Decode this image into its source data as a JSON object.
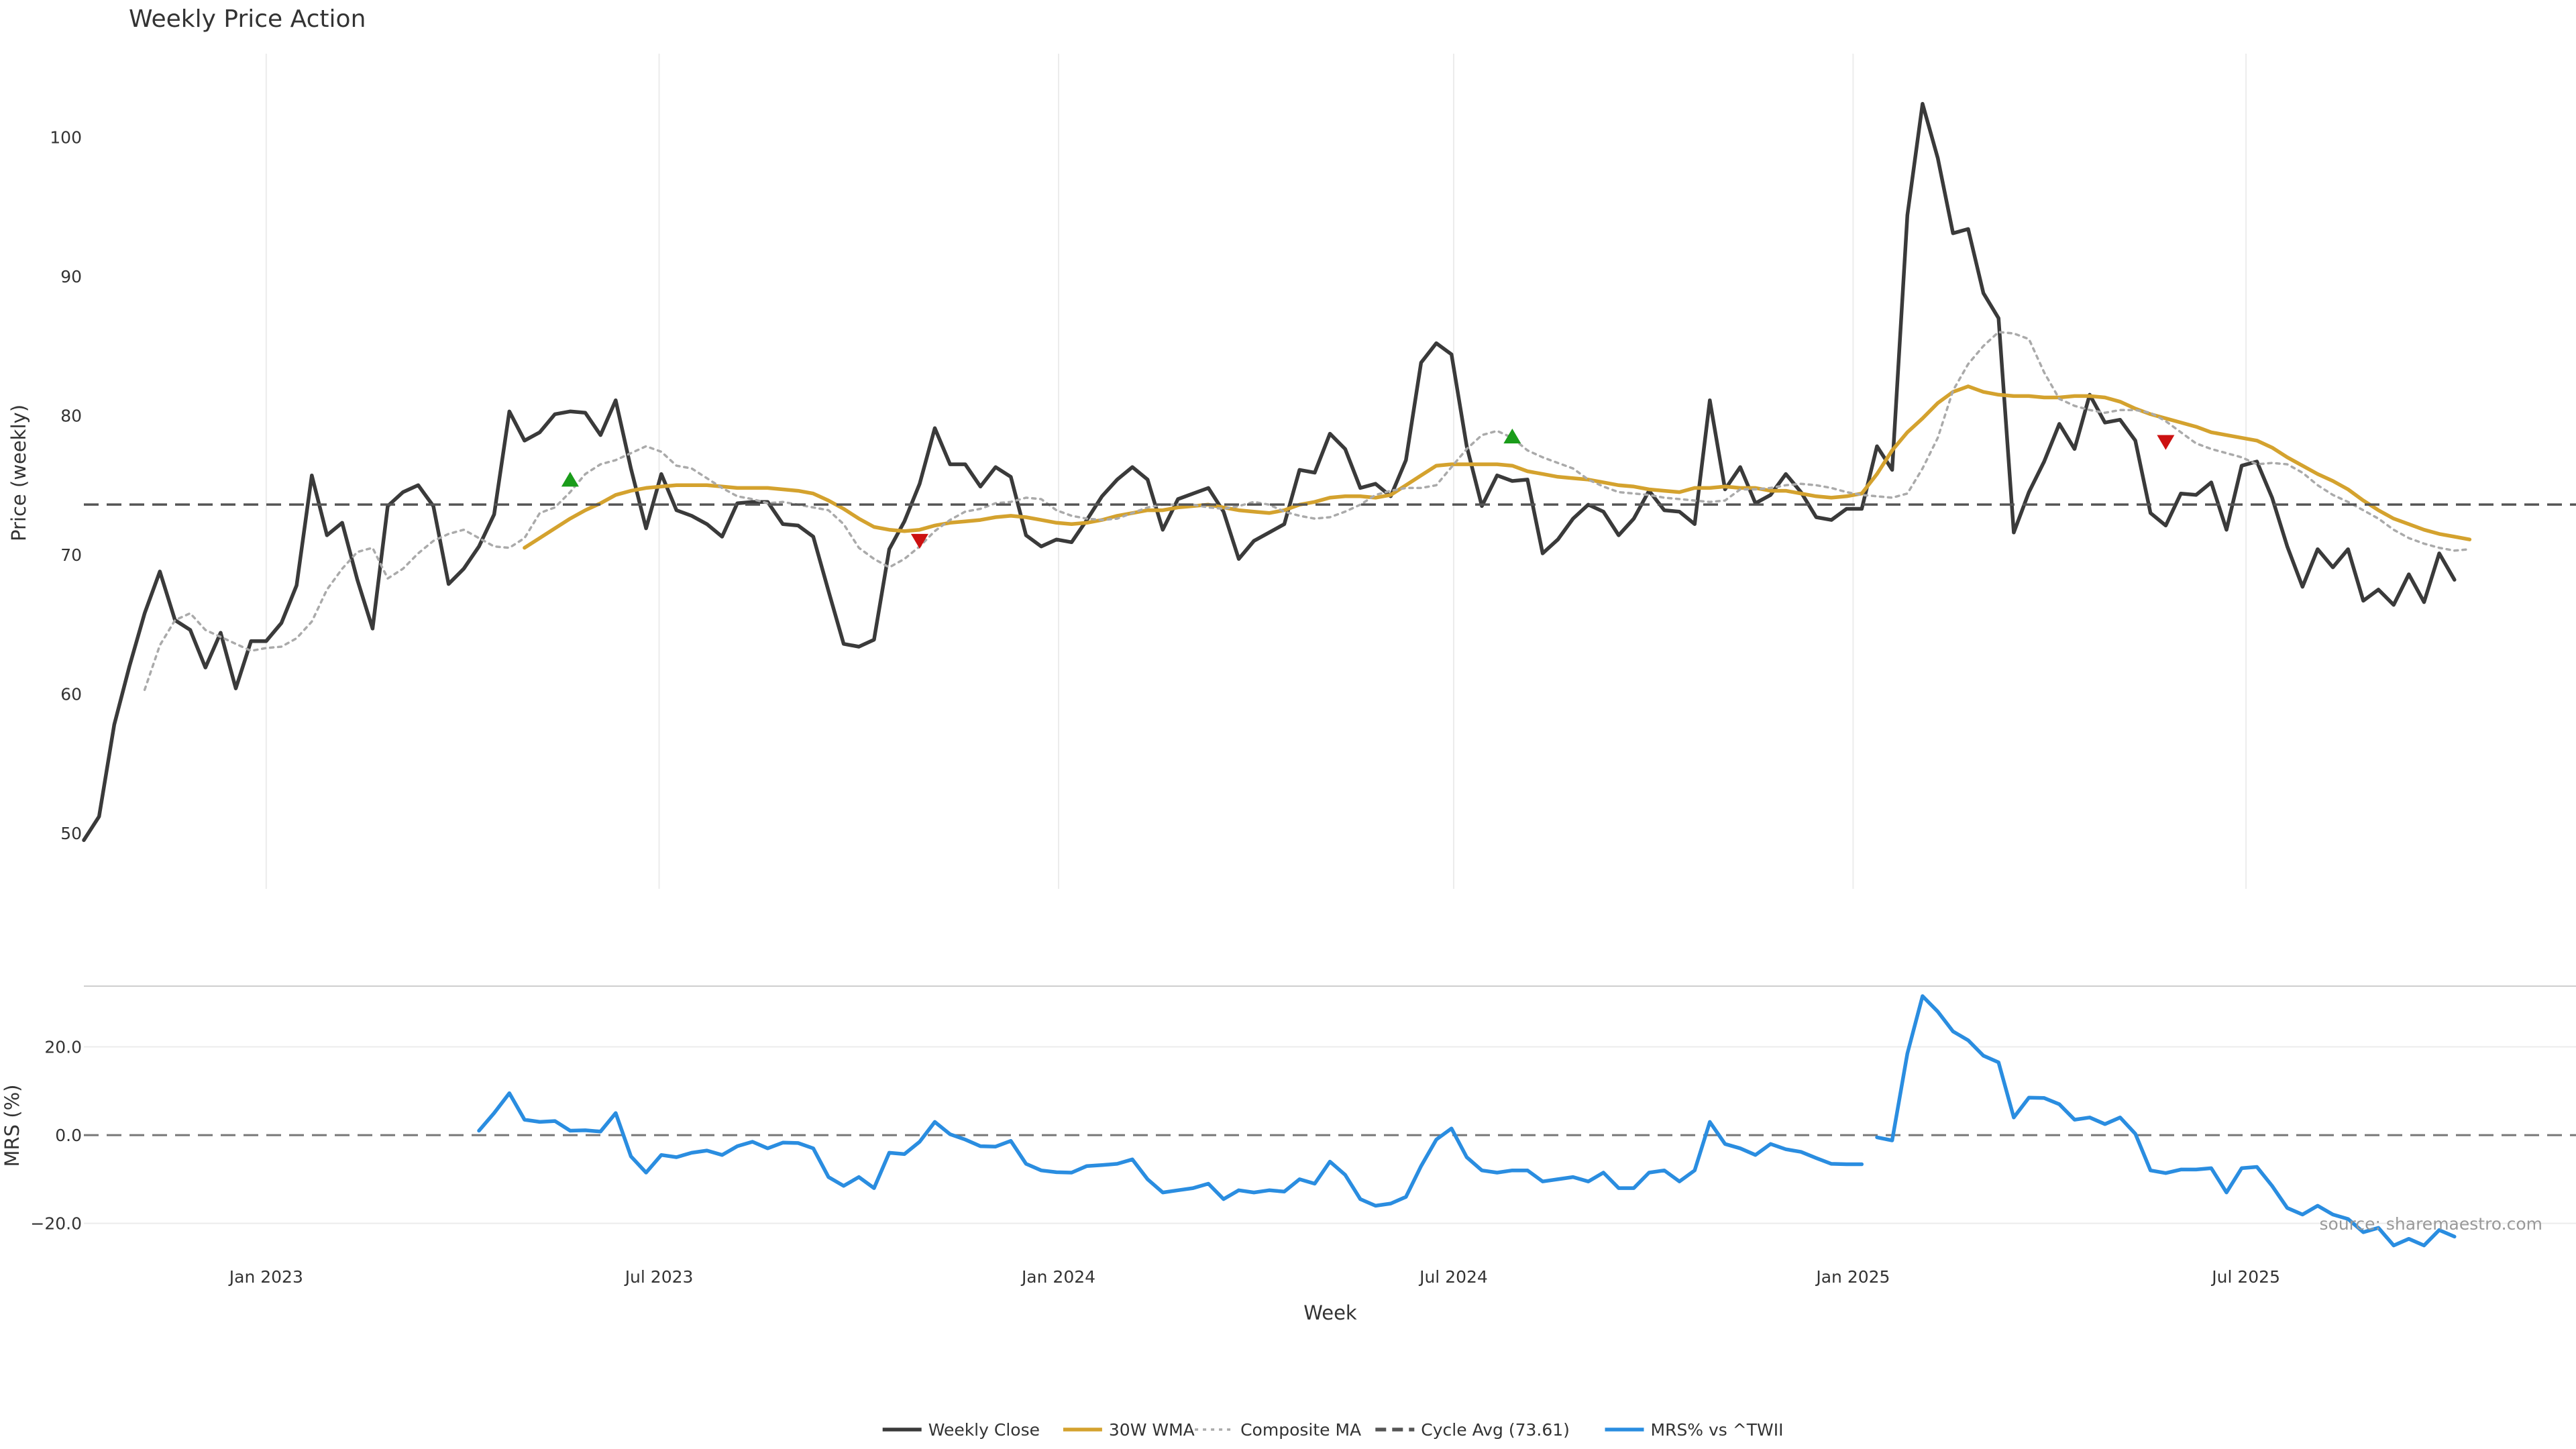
{
  "chart_data": [
    {
      "type": "line",
      "title": "Weekly Price Action",
      "xlabel": "Week",
      "ylabel": "Price (weekly)",
      "ylim": [
        46,
        106
      ],
      "yticks": [
        50,
        60,
        70,
        80,
        90,
        100
      ],
      "xlim": [
        "2022-10-09",
        "2025-11-30"
      ],
      "xticks": [
        {
          "date": "2023-01-01",
          "label": "Jan 2023"
        },
        {
          "date": "2023-07-01",
          "label": "Jul 2023"
        },
        {
          "date": "2024-01-01",
          "label": "Jan 2024"
        },
        {
          "date": "2024-07-01",
          "label": "Jul 2024"
        },
        {
          "date": "2025-01-01",
          "label": "Jan 2025"
        },
        {
          "date": "2025-07-01",
          "label": "Jul 2025"
        }
      ],
      "grid": "vertical",
      "x_start_date": "2022-10-09",
      "x_step_days": 7,
      "series": [
        {
          "name": "Weekly Close",
          "color": "#3a3a3a",
          "style": "solid",
          "values": [
            49.5,
            51.2,
            57.8,
            62.0,
            65.8,
            68.8,
            65.3,
            64.6,
            61.9,
            64.4,
            60.4,
            63.8,
            63.8,
            65.1,
            67.8,
            75.7,
            71.4,
            72.3,
            68.2,
            64.7,
            73.5,
            74.5,
            75.0,
            73.5,
            67.9,
            69.0,
            70.6,
            72.9,
            80.3,
            78.2,
            78.8,
            80.1,
            80.3,
            80.2,
            78.6,
            81.1,
            76.2,
            71.9,
            75.8,
            73.2,
            72.8,
            72.2,
            71.3,
            73.7,
            73.8,
            73.8,
            72.2,
            72.1,
            71.3,
            67.4,
            63.6,
            63.4,
            63.9,
            70.4,
            72.4,
            75.1,
            79.1,
            76.5,
            76.5,
            74.9,
            76.3,
            75.6,
            71.4,
            70.6,
            71.1,
            70.9,
            72.5,
            74.2,
            75.4,
            76.3,
            75.4,
            71.8,
            74.0,
            74.4,
            74.8,
            73.1,
            69.7,
            71.0,
            71.6,
            72.2,
            76.1,
            75.9,
            78.7,
            77.6,
            74.8,
            75.1,
            74.2,
            76.8,
            83.8,
            85.2,
            84.4,
            77.8,
            73.5,
            75.7,
            75.3,
            75.4,
            70.1,
            71.1,
            72.6,
            73.6,
            73.1,
            71.4,
            72.6,
            74.6,
            73.2,
            73.1,
            72.2,
            81.1,
            74.7,
            76.3,
            73.7,
            74.3,
            75.8,
            74.5,
            72.7,
            72.5,
            73.3,
            73.3,
            77.8,
            76.1,
            94.4,
            102.4,
            98.5,
            93.1,
            93.4,
            88.8,
            87.0,
            71.6,
            74.5,
            76.7,
            79.4,
            77.6,
            81.5,
            79.5,
            79.7,
            78.2,
            73.0,
            72.1,
            74.4,
            74.3,
            75.2,
            71.8,
            76.4,
            76.7,
            74.1,
            70.6,
            67.7,
            70.4,
            69.1,
            70.4,
            66.7,
            67.5,
            66.4,
            68.6,
            66.6,
            70.1,
            68.2
          ]
        },
        {
          "name": "30W WMA",
          "color": "#d4a22e",
          "style": "solid",
          "start_index": 29,
          "values": [
            70.5,
            71.2,
            71.9,
            72.6,
            73.2,
            73.7,
            74.3,
            74.6,
            74.8,
            74.9,
            75.0,
            75.0,
            75.0,
            74.9,
            74.8,
            74.8,
            74.8,
            74.7,
            74.6,
            74.4,
            73.9,
            73.3,
            72.6,
            72.0,
            71.8,
            71.7,
            71.8,
            72.1,
            72.3,
            72.4,
            72.5,
            72.7,
            72.8,
            72.7,
            72.5,
            72.3,
            72.2,
            72.3,
            72.5,
            72.8,
            73.0,
            73.2,
            73.2,
            73.4,
            73.5,
            73.6,
            73.4,
            73.2,
            73.1,
            73.0,
            73.2,
            73.6,
            73.8,
            74.1,
            74.2,
            74.2,
            74.1,
            74.3,
            75.0,
            75.7,
            76.4,
            76.5,
            76.5,
            76.5,
            76.5,
            76.4,
            76.0,
            75.8,
            75.6,
            75.5,
            75.4,
            75.2,
            75.0,
            74.9,
            74.7,
            74.6,
            74.5,
            74.8,
            74.8,
            74.9,
            74.8,
            74.8,
            74.6,
            74.6,
            74.4,
            74.2,
            74.1,
            74.2,
            74.4,
            75.8,
            77.5,
            78.8,
            79.8,
            80.9,
            81.7,
            82.1,
            81.7,
            81.5,
            81.4,
            81.4,
            81.3,
            81.3,
            81.4,
            81.4,
            81.3,
            81.0,
            80.5,
            80.1,
            79.8,
            79.5,
            79.2,
            78.8,
            78.6,
            78.4,
            78.2,
            77.7,
            77.0,
            76.4,
            75.8,
            75.3,
            74.7,
            73.9,
            73.2,
            72.6,
            72.2,
            71.8,
            71.5,
            71.3,
            71.1
          ]
        },
        {
          "name": "Composite MA",
          "color": "#aaaaaa",
          "style": "dotted",
          "start_index": 4,
          "values": [
            60.3,
            63.5,
            65.3,
            65.8,
            64.6,
            64.1,
            63.6,
            63.1,
            63.3,
            63.4,
            64.0,
            65.2,
            67.5,
            69.0,
            70.2,
            70.5,
            68.3,
            69.0,
            70.1,
            71.0,
            71.5,
            71.8,
            71.2,
            70.6,
            70.5,
            71.2,
            73.0,
            73.4,
            74.5,
            75.8,
            76.5,
            76.8,
            77.3,
            77.8,
            77.4,
            76.4,
            76.2,
            75.5,
            74.8,
            74.2,
            74.0,
            73.7,
            73.8,
            73.6,
            73.4,
            73.2,
            72.2,
            70.5,
            69.7,
            69.1,
            69.7,
            70.6,
            71.7,
            72.5,
            73.1,
            73.3,
            73.7,
            73.8,
            74.1,
            74.0,
            73.2,
            72.8,
            72.6,
            72.5,
            72.6,
            73.0,
            73.4,
            73.6,
            73.6,
            73.6,
            73.4,
            73.3,
            73.5,
            73.8,
            73.6,
            73.1,
            72.8,
            72.6,
            72.7,
            73.1,
            73.6,
            74.3,
            74.6,
            74.8,
            74.8,
            75.0,
            76.3,
            77.6,
            78.6,
            78.9,
            78.4,
            77.5,
            77.0,
            76.6,
            76.2,
            75.4,
            74.9,
            74.5,
            74.4,
            74.3,
            74.1,
            74.0,
            73.9,
            73.8,
            73.9,
            74.7,
            74.7,
            74.8,
            75.0,
            75.1,
            75.0,
            74.8,
            74.5,
            74.3,
            74.2,
            74.1,
            74.4,
            76.2,
            78.4,
            81.8,
            83.7,
            85.0,
            86.0,
            85.9,
            85.5,
            83.1,
            81.2,
            80.7,
            80.4,
            80.2,
            80.4,
            80.4,
            80.2,
            79.6,
            78.8,
            78.0,
            77.6,
            77.3,
            77.0,
            76.5,
            76.6,
            76.5,
            75.9,
            75.0,
            74.3,
            73.8,
            73.2,
            72.6,
            71.8,
            71.2,
            70.8,
            70.5,
            70.3,
            70.4
          ]
        },
        {
          "name": "Cycle Avg (73.61)",
          "color": "#555555",
          "style": "dashed",
          "constant": 73.61
        }
      ],
      "markers": [
        {
          "type": "buy",
          "date": "2023-05-21",
          "value": 75.4,
          "color": "#1a9c1a"
        },
        {
          "type": "sell",
          "date": "2023-10-29",
          "value": 71.0,
          "color": "#cc1111"
        },
        {
          "type": "buy",
          "date": "2024-07-28",
          "value": 78.5,
          "color": "#1a9c1a"
        },
        {
          "type": "sell",
          "date": "2025-05-25",
          "value": 78.1,
          "color": "#cc1111"
        }
      ]
    },
    {
      "type": "line",
      "ylabel": "MRS (%)",
      "ylim": [
        -24,
        33
      ],
      "yticks": [
        {
          "value": 20,
          "label": "20.0"
        },
        {
          "value": 0,
          "label": "0.0"
        },
        {
          "value": -20,
          "label": "−20.0"
        }
      ],
      "zero_line": 0,
      "series": [
        {
          "name": "MRS% vs ^TWII",
          "color": "#2a8de0",
          "style": "solid",
          "segments": [
            {
              "start_index": 26,
              "values": [
                1.0,
                5.0,
                9.5,
                3.5,
                3.0,
                3.2,
                1.0,
                1.1,
                0.8,
                5.0,
                -4.8,
                -8.5,
                -4.5,
                -5.0,
                -4.0,
                -3.5,
                -4.5,
                -2.5,
                -1.5,
                -3.0,
                -1.7,
                -1.8,
                -3.0,
                -9.5,
                -11.5,
                -9.5,
                -12.0,
                -4.0,
                -4.3,
                -1.5,
                3.0,
                0.2,
                -1.0,
                -2.5,
                -2.6,
                -1.3,
                -6.5,
                -8.0,
                -8.4,
                -8.5,
                -7.0,
                -6.8,
                -6.5,
                -5.5,
                -10.0,
                -13.0,
                -12.5,
                -12.0,
                -11.0,
                -14.5,
                -12.5,
                -13.0,
                -12.5,
                -12.8,
                -10.0,
                -11.0,
                -6.0,
                -9.0,
                -14.5,
                -16.0,
                -15.5,
                -14.0,
                -7.0,
                -1.0,
                1.5,
                -5.0,
                -8.0,
                -8.5,
                -8.0,
                -8.0,
                -10.5,
                -10.0,
                -9.5,
                -10.5,
                -8.5,
                -12.0,
                -12.0,
                -8.5,
                -8.0,
                -10.5,
                -8.0,
                3.0,
                -2.0,
                -3.0,
                -4.5,
                -2.0,
                -3.2,
                -3.8,
                -5.2,
                -6.5,
                -6.6,
                -6.6
              ]
            },
            {
              "start_index": 118,
              "values": [
                -0.5,
                -1.2,
                18.5,
                31.5,
                28.0,
                23.5,
                21.5,
                18.0,
                16.5,
                4.0,
                8.5,
                8.4,
                7.0,
                3.5,
                4.0,
                2.5,
                4.0,
                0.3,
                -8.0,
                -8.6,
                -7.8,
                -7.8,
                -7.5,
                -13.0,
                -7.5,
                -7.2,
                -11.5,
                -16.5,
                -18.0,
                -16.0,
                -18.0,
                -19.0,
                -22.0,
                -21.0,
                -25.0,
                -23.5,
                -25.0,
                -21.5,
                -23.0
              ]
            }
          ]
        }
      ]
    }
  ],
  "legend": {
    "placement": "bottom-center",
    "items": [
      {
        "label": "Weekly Close",
        "color": "#3a3a3a",
        "style": "solid"
      },
      {
        "label": "30W WMA",
        "color": "#d4a22e",
        "style": "solid"
      },
      {
        "label": "Composite MA",
        "color": "#aaaaaa",
        "style": "dotted"
      },
      {
        "label": "Cycle Avg (73.61)",
        "color": "#555555",
        "style": "dashed"
      },
      {
        "label": "MRS% vs ^TWII",
        "color": "#2a8de0",
        "style": "solid"
      }
    ]
  },
  "source_text": "source: sharemaestro.com"
}
